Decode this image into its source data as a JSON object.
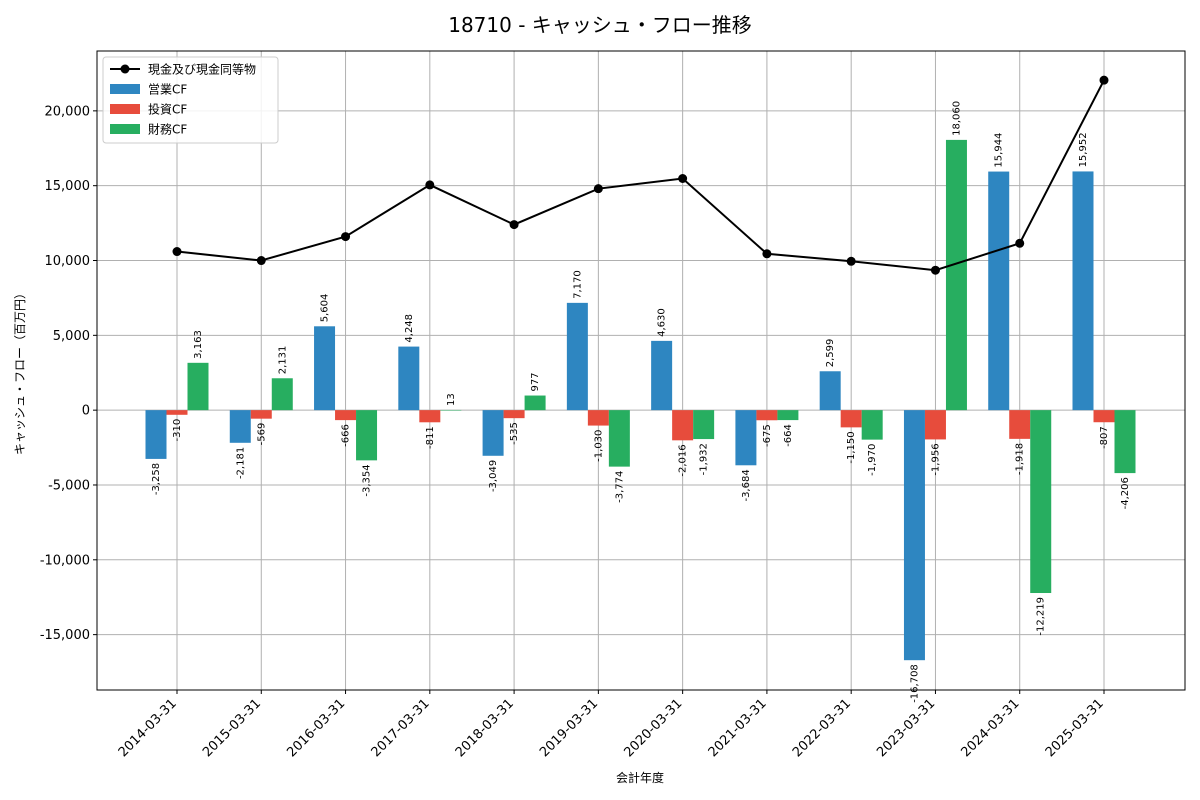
{
  "chart_data": {
    "type": "bar",
    "title": "18710 - キャッシュ・フロー推移",
    "xlabel": "会計年度",
    "ylabel": "キャッシュ・フロー（百万円）",
    "categories": [
      "2014-03-31",
      "2015-03-31",
      "2016-03-31",
      "2017-03-31",
      "2018-03-31",
      "2019-03-31",
      "2020-03-31",
      "2021-03-31",
      "2022-03-31",
      "2023-03-31",
      "2024-03-31",
      "2025-03-31"
    ],
    "series": [
      {
        "name": "営業CF",
        "type": "bar",
        "color": "#2e86c1",
        "values": [
          -3258,
          -2181,
          5604,
          4248,
          -3049,
          7170,
          4630,
          -3684,
          2599,
          -16708,
          15944,
          15952
        ],
        "labels": [
          "-3,258",
          "-2,181",
          "5,604",
          "4,248",
          "-3,049",
          "7,170",
          "4,630",
          "-3,684",
          "2,599",
          "-16,708",
          "15,944",
          "15,952"
        ]
      },
      {
        "name": "投資CF",
        "type": "bar",
        "color": "#e74c3c",
        "values": [
          -310,
          -569,
          -666,
          -811,
          -535,
          -1030,
          -2016,
          -675,
          -1150,
          -1956,
          -1918,
          -807
        ],
        "labels": [
          "-310",
          "-569",
          "-666",
          "-811",
          "-535",
          "-1,030",
          "-2,016",
          "-675",
          "-1,150",
          "-1,956",
          "-1,918",
          "-807"
        ]
      },
      {
        "name": "財務CF",
        "type": "bar",
        "color": "#27ae60",
        "values": [
          3163,
          2131,
          -3354,
          13,
          977,
          -3774,
          -1932,
          -664,
          -1970,
          18060,
          -12219,
          -4206
        ],
        "labels": [
          "3,163",
          "2,131",
          "-3,354",
          "13",
          "977",
          "-3,774",
          "-1,932",
          "-664",
          "-1,970",
          "18,060",
          "-12,219",
          "-4,206"
        ]
      },
      {
        "name": "現金及び現金同等物",
        "type": "line",
        "color": "#000000",
        "values": [
          10600,
          10000,
          11600,
          15050,
          12400,
          14800,
          15480,
          10450,
          9950,
          9350,
          11150,
          22050
        ]
      }
    ],
    "ylim": [
      -18700,
      24000
    ],
    "yticks": [
      -15000,
      -10000,
      -5000,
      0,
      5000,
      10000,
      15000,
      20000
    ],
    "ytick_labels": [
      "-15,000",
      "-10,000",
      "-5,000",
      "0",
      "5,000",
      "10,000",
      "15,000",
      "20,000"
    ],
    "grid": true,
    "legend_position": "top-left"
  }
}
